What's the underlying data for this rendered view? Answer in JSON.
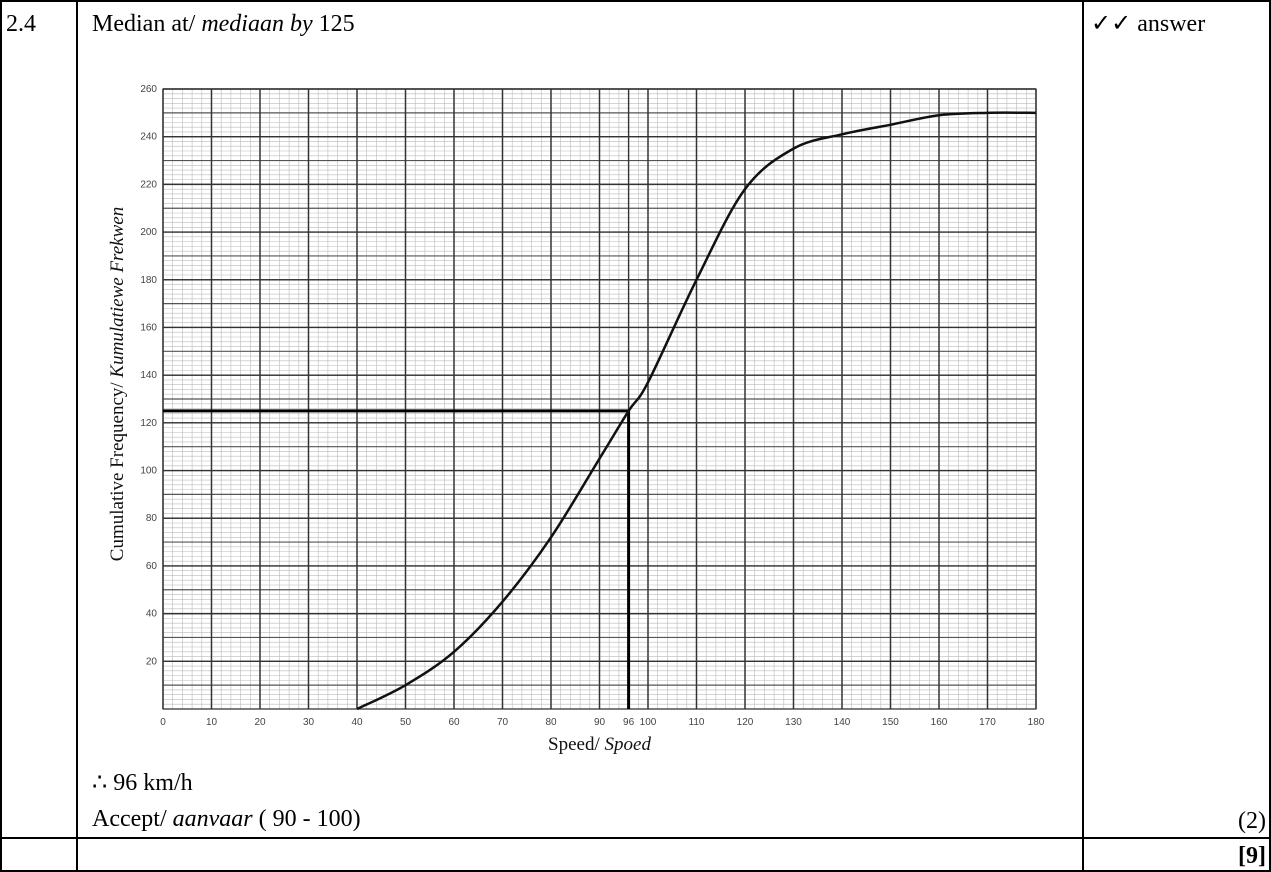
{
  "question": {
    "number": "2.4",
    "heading": [
      "Median at/ ",
      "mediaan by",
      " 125"
    ],
    "answer_lines": [
      [
        "∴ 96 km/h"
      ],
      [
        "Accept/ ",
        "aanvaar",
        " ( 90 - 100)"
      ]
    ]
  },
  "marking": {
    "criteria": "✓✓ answer",
    "marks": "(2)",
    "total": "[9]"
  },
  "chart_data": {
    "type": "line",
    "x_label": [
      "Speed/ ",
      "Spoed"
    ],
    "y_label": [
      "Cumulative Frequency/ ",
      "Kumulatiewe Frekwen"
    ],
    "x": [
      40,
      50,
      60,
      70,
      80,
      90,
      96,
      100,
      110,
      120,
      130,
      140,
      150,
      160,
      170,
      180
    ],
    "series": [
      {
        "color": "#111111",
        "values": [
          0,
          10,
          24,
          45,
          72,
          105,
          125,
          137,
          180,
          218,
          235,
          241,
          245,
          249,
          250,
          250
        ]
      }
    ],
    "median": {
      "x": 96,
      "y": 125
    },
    "xlim": [
      0,
      180
    ],
    "ylim": [
      0,
      260
    ],
    "xticks": [
      0,
      10,
      20,
      30,
      40,
      50,
      60,
      70,
      80,
      90,
      96,
      100,
      110,
      120,
      130,
      140,
      150,
      160,
      170,
      180
    ],
    "yticks": [
      20,
      40,
      60,
      80,
      100,
      120,
      140,
      160,
      180,
      200,
      220,
      240,
      260
    ],
    "grid": true
  }
}
